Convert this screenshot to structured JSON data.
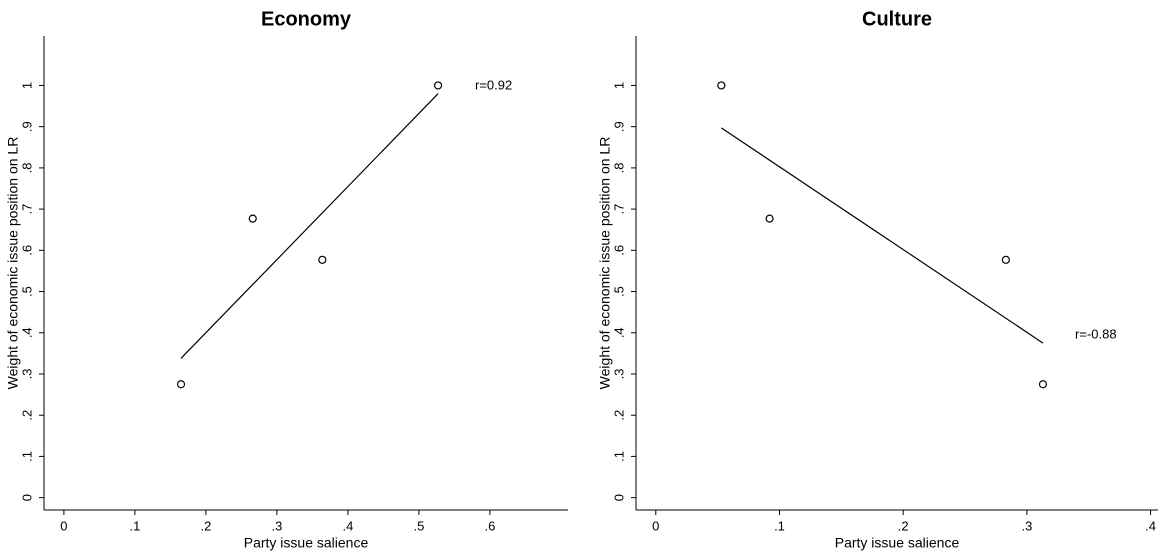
{
  "chart_data": [
    {
      "type": "scatter",
      "title": "Economy",
      "x_label": "Party issue salience",
      "y_label": "Weight of economic issue position on LR",
      "points": {
        "x": [
          0.165,
          0.266,
          0.364,
          0.527
        ],
        "values": [
          0.275,
          0.677,
          0.577,
          1.0
        ]
      },
      "fit_line": {
        "x": [
          0.165,
          0.527
        ],
        "values": [
          0.338,
          0.98
        ]
      },
      "annotation": "r=0.92",
      "xlim": [
        -0.028,
        0.71
      ],
      "ylim": [
        -0.03,
        1.12
      ],
      "xticks": [
        0,
        {
          "value": 0.1,
          "label": ".1"
        },
        {
          "value": 0.2,
          "label": ".2"
        },
        {
          "value": 0.3,
          "label": ".3"
        },
        {
          "value": 0.4,
          "label": ".4"
        },
        {
          "value": 0.5,
          "label": ".5"
        },
        {
          "value": 0.6,
          "label": ".6"
        }
      ],
      "yticks": [
        0,
        {
          "value": 0.1,
          "label": ".1"
        },
        {
          "value": 0.2,
          "label": ".2"
        },
        {
          "value": 0.3,
          "label": ".3"
        },
        {
          "value": 0.4,
          "label": ".4"
        },
        {
          "value": 0.5,
          "label": ".5"
        },
        {
          "value": 0.6,
          "label": ".6"
        },
        {
          "value": 0.7,
          "label": ".7"
        },
        {
          "value": 0.8,
          "label": ".8"
        },
        {
          "value": 0.9,
          "label": ".9"
        },
        1
      ]
    },
    {
      "type": "scatter",
      "title": "Culture",
      "x_label": "Party issue salience",
      "y_label": "Weight of economic issue position on LR",
      "points": {
        "x": [
          0.053,
          0.092,
          0.283,
          0.313
        ],
        "values": [
          1.0,
          0.677,
          0.577,
          0.275
        ]
      },
      "fit_line": {
        "x": [
          0.053,
          0.313
        ],
        "values": [
          0.897,
          0.375
        ]
      },
      "annotation": "r=-0.88",
      "xlim": [
        -0.016,
        0.406
      ],
      "ylim": [
        -0.03,
        1.12
      ],
      "xticks": [
        0,
        {
          "value": 0.1,
          "label": ".1"
        },
        {
          "value": 0.2,
          "label": ".2"
        },
        {
          "value": 0.3,
          "label": ".3"
        },
        {
          "value": 0.4,
          "label": ".4"
        }
      ],
      "yticks": [
        0,
        {
          "value": 0.1,
          "label": ".1"
        },
        {
          "value": 0.2,
          "label": ".2"
        },
        {
          "value": 0.3,
          "label": ".3"
        },
        {
          "value": 0.4,
          "label": ".4"
        },
        {
          "value": 0.5,
          "label": ".5"
        },
        {
          "value": 0.6,
          "label": ".6"
        },
        {
          "value": 0.7,
          "label": ".7"
        },
        {
          "value": 0.8,
          "label": ".8"
        },
        {
          "value": 0.9,
          "label": ".9"
        },
        1
      ]
    }
  ]
}
